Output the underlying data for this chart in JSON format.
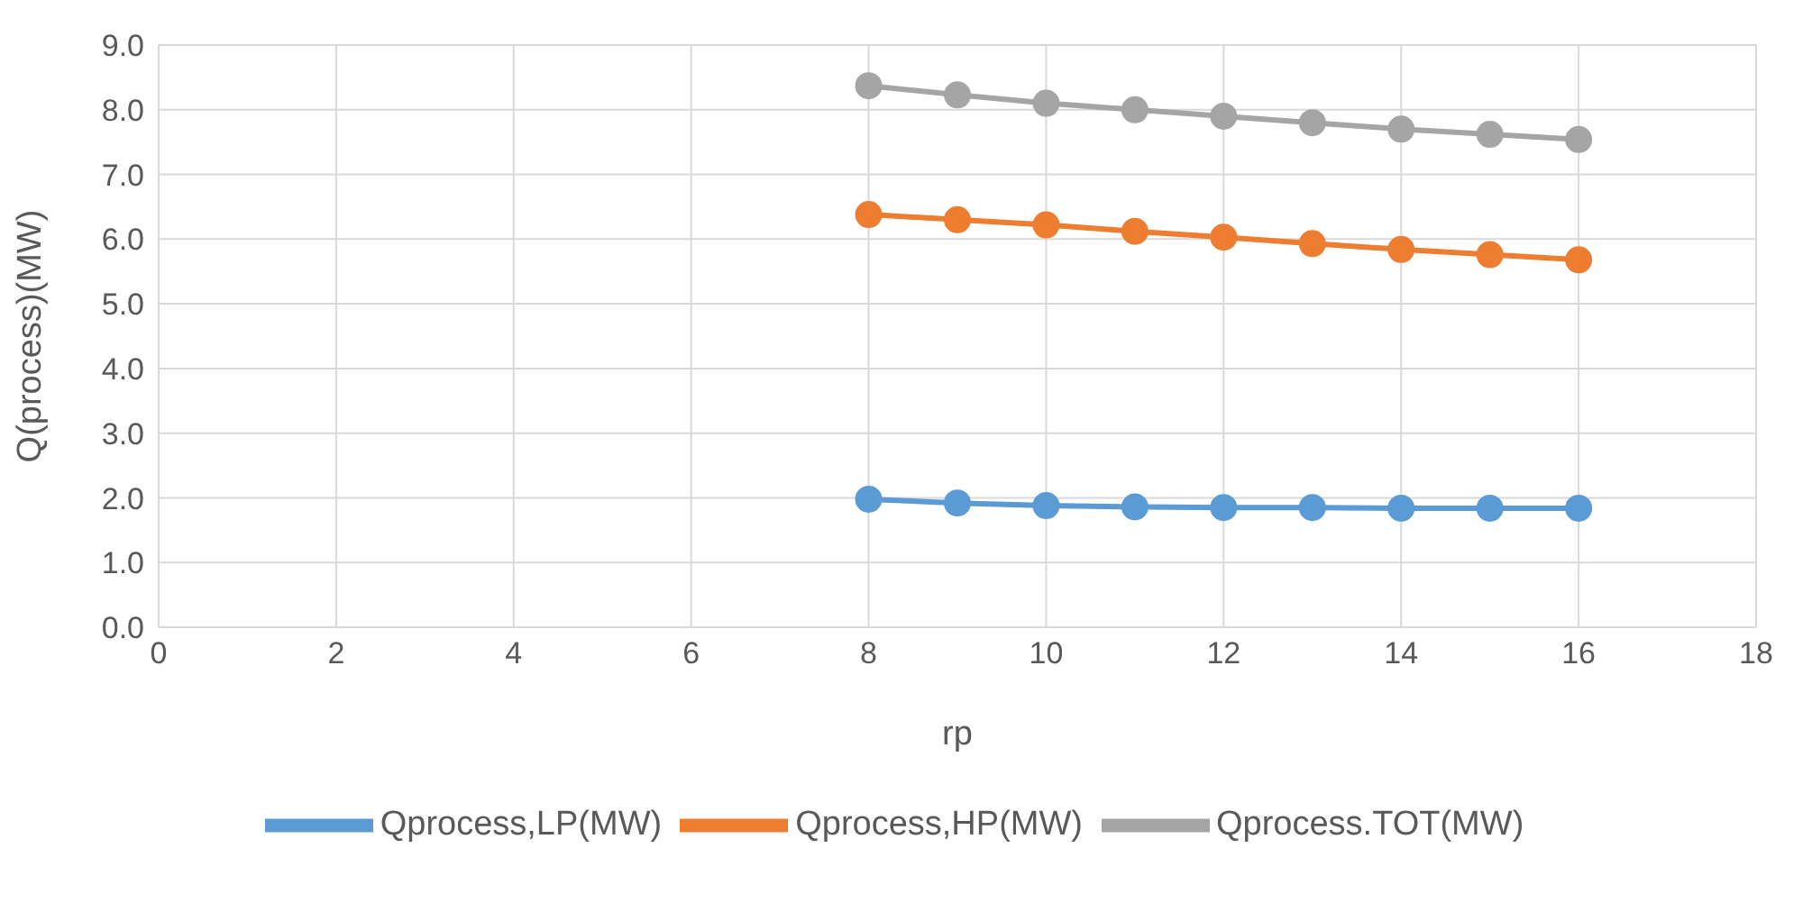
{
  "chart_data": {
    "type": "line",
    "xlabel": "rp",
    "ylabel": "Q(process)(MW)",
    "x": [
      8,
      9,
      10,
      11,
      12,
      13,
      14,
      15,
      16
    ],
    "series": [
      {
        "name": "Qprocess,LP(MW)",
        "color": "#5b9bd5",
        "values": [
          1.98,
          1.92,
          1.88,
          1.86,
          1.85,
          1.85,
          1.84,
          1.84,
          1.84
        ]
      },
      {
        "name": "Qprocess,HP(MW)",
        "color": "#ed7d31",
        "values": [
          6.38,
          6.3,
          6.22,
          6.12,
          6.03,
          5.93,
          5.84,
          5.76,
          5.68
        ]
      },
      {
        "name": "Qprocess.TOT(MW)",
        "color": "#a5a5a5",
        "values": [
          8.37,
          8.23,
          8.1,
          8.0,
          7.9,
          7.8,
          7.7,
          7.62,
          7.54
        ]
      }
    ],
    "xlim": [
      0,
      18
    ],
    "xticks": [
      0,
      2,
      4,
      6,
      8,
      10,
      12,
      14,
      16,
      18
    ],
    "ylim": [
      0,
      9
    ],
    "yticks": [
      {
        "value": 0,
        "label": "0.0"
      },
      {
        "value": 1,
        "label": "1.0"
      },
      {
        "value": 2,
        "label": "2.0"
      },
      {
        "value": 3,
        "label": "3.0"
      },
      {
        "value": 4,
        "label": "4.0"
      },
      {
        "value": 5,
        "label": "5.0"
      },
      {
        "value": 6,
        "label": "6.0"
      },
      {
        "value": 7,
        "label": "7.0"
      },
      {
        "value": 8,
        "label": "8.0"
      },
      {
        "value": 9,
        "label": "9.0"
      }
    ],
    "grid": true,
    "legend": "bottom",
    "marker": "circle",
    "line_style": "solid"
  }
}
